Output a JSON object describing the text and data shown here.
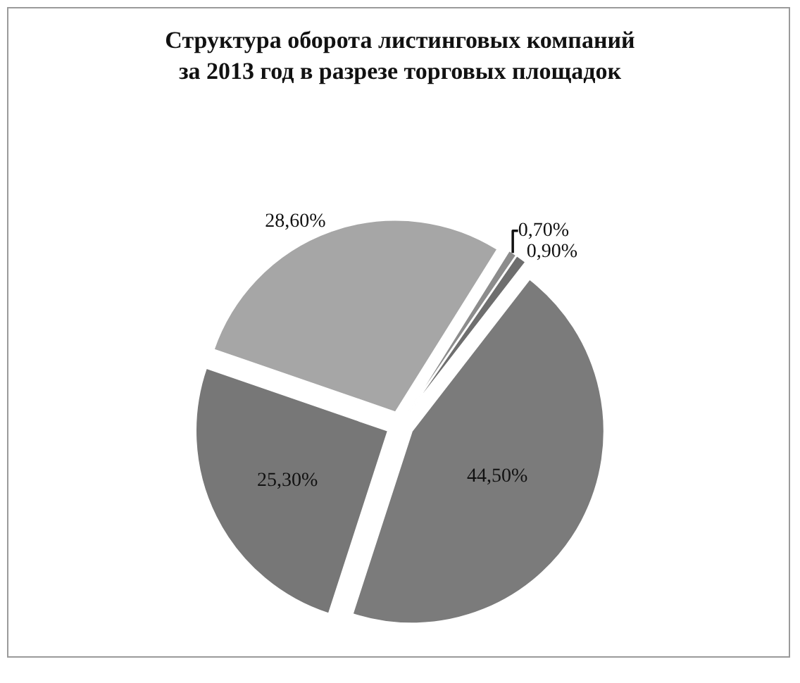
{
  "chart_data": {
    "type": "pie",
    "title": "Структура оборота листинговых компаний\nза 2013 год в разрезе торговых площадок",
    "categories": [
      null,
      null,
      null,
      null,
      null
    ],
    "values": [
      0.7,
      0.9,
      44.5,
      25.3,
      28.6
    ],
    "value_labels": [
      "0,70%",
      "0,90%",
      "44,50%",
      "25,30%",
      "28,60%"
    ],
    "colors": [
      "#8c8c8c",
      "#6e6e6e",
      "#7b7b7b",
      "#777777",
      "#a6a6a6"
    ]
  }
}
